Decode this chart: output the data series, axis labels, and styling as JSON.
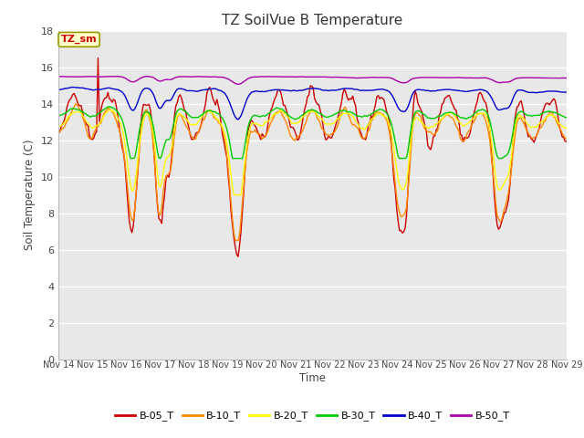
{
  "title": "TZ SoilVue B Temperature",
  "xlabel": "Time",
  "ylabel": "Soil Temperature (C)",
  "ylim": [
    0,
    18
  ],
  "yticks": [
    0,
    2,
    4,
    6,
    8,
    10,
    12,
    14,
    16,
    18
  ],
  "x_labels": [
    "Nov 14",
    "Nov 15",
    "Nov 16",
    "Nov 17",
    "Nov 18",
    "Nov 19",
    "Nov 20",
    "Nov 21",
    "Nov 22",
    "Nov 23",
    "Nov 24",
    "Nov 25",
    "Nov 26",
    "Nov 27",
    "Nov 28",
    "Nov 29"
  ],
  "plot_bg_color": "#e8e8e8",
  "grid_color": "#ffffff",
  "series_colors": {
    "B-05_T": "#cc0000",
    "B-10_T": "#ff8800",
    "B-20_T": "#ffff00",
    "B-30_T": "#00cc00",
    "B-40_T": "#0000cc",
    "B-50_T": "#aa00aa"
  },
  "annotation_text": "TZ_sm",
  "annotation_color": "#cc0000",
  "annotation_bg": "#ffffcc",
  "annotation_border": "#999900"
}
